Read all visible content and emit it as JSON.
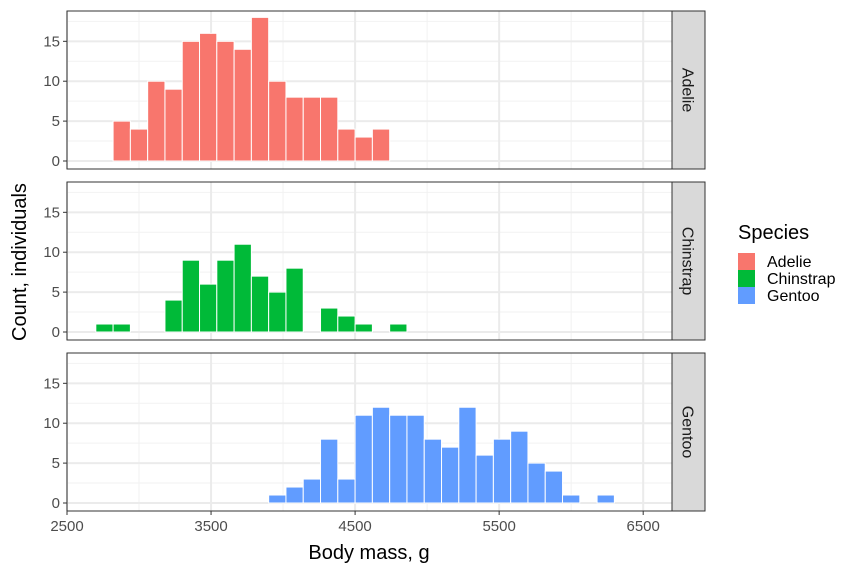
{
  "chart_data": {
    "type": "bar",
    "subtype": "faceted-histogram",
    "xlabel": "Body mass, g",
    "ylabel": "Count, individuals",
    "xlim": [
      2500,
      6700
    ],
    "ylim": [
      0,
      18.8
    ],
    "x_ticks": [
      "2500",
      "3500",
      "4500",
      "5500",
      "6500"
    ],
    "y_ticks": [
      "0",
      "5",
      "10",
      "15"
    ],
    "bin_width": 120,
    "grid": true,
    "legend": {
      "title": "Species",
      "placement": "right",
      "entries": [
        "Adelie",
        "Chinstrap",
        "Gentoo"
      ]
    },
    "series": [
      {
        "name": "Adelie",
        "color": "#F8766D",
        "bin_starts": [
          2820,
          2940,
          3060,
          3180,
          3300,
          3420,
          3540,
          3660,
          3780,
          3900,
          4020,
          4140,
          4260,
          4380,
          4500,
          4620
        ],
        "values": [
          5,
          4,
          10,
          9,
          15,
          16,
          15,
          14,
          18,
          10,
          8,
          8,
          8,
          4,
          3,
          4
        ]
      },
      {
        "name": "Chinstrap",
        "color": "#00BA38",
        "bin_starts": [
          2700,
          2820,
          3180,
          3300,
          3420,
          3540,
          3660,
          3780,
          3900,
          4020,
          4260,
          4380,
          4500,
          4740
        ],
        "values": [
          1,
          1,
          4,
          9,
          6,
          9,
          11,
          7,
          5,
          8,
          3,
          2,
          1,
          1
        ]
      },
      {
        "name": "Gentoo",
        "color": "#619CFF",
        "bin_starts": [
          3900,
          4020,
          4140,
          4260,
          4380,
          4500,
          4620,
          4740,
          4860,
          4980,
          5100,
          5220,
          5340,
          5460,
          5580,
          5700,
          5820,
          5940,
          6180
        ],
        "values": [
          1,
          2,
          3,
          8,
          3,
          11,
          12,
          11,
          11,
          8,
          7,
          12,
          6,
          8,
          9,
          5,
          4,
          1,
          1
        ]
      }
    ]
  }
}
